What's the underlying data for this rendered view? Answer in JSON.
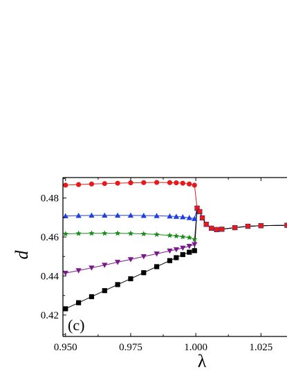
{
  "chart_data": {
    "type": "line",
    "xlabel": "λ",
    "ylabel": "d",
    "annotation": "(c)",
    "xlim": [
      0.949,
      1.035
    ],
    "ylim": [
      0.409,
      0.4905
    ],
    "xticks": [
      {
        "value": 0.95,
        "label": "0.950"
      },
      {
        "value": 0.975,
        "label": "0.975"
      },
      {
        "value": 1.0,
        "label": "1.000"
      },
      {
        "value": 1.025,
        "label": "1.025"
      }
    ],
    "yticks": [
      {
        "value": 0.42,
        "label": "0.42"
      },
      {
        "value": 0.44,
        "label": "0.44"
      },
      {
        "value": 0.46,
        "label": "0.46"
      },
      {
        "value": 0.48,
        "label": "0.48"
      }
    ],
    "grid": false,
    "series": [
      {
        "color": "#e41a1c",
        "marker": "circle",
        "points": [
          [
            0.95,
            0.4866
          ],
          [
            0.955,
            0.4869
          ],
          [
            0.96,
            0.4872
          ],
          [
            0.965,
            0.4874
          ],
          [
            0.97,
            0.4876
          ],
          [
            0.975,
            0.4878
          ],
          [
            0.98,
            0.4879
          ],
          [
            0.985,
            0.488
          ],
          [
            0.99,
            0.4879
          ],
          [
            0.9925,
            0.4878
          ],
          [
            0.995,
            0.4876
          ],
          [
            0.9975,
            0.4872
          ],
          [
            0.9995,
            0.4866
          ]
        ]
      },
      {
        "color": "#1f3fe0",
        "marker": "triangle-up",
        "points": [
          [
            0.95,
            0.4708
          ],
          [
            0.955,
            0.471
          ],
          [
            0.96,
            0.4711
          ],
          [
            0.965,
            0.4711
          ],
          [
            0.97,
            0.4711
          ],
          [
            0.975,
            0.4711
          ],
          [
            0.98,
            0.471
          ],
          [
            0.985,
            0.4709
          ],
          [
            0.99,
            0.4707
          ],
          [
            0.9925,
            0.4705
          ],
          [
            0.995,
            0.4703
          ],
          [
            0.9975,
            0.4699
          ],
          [
            0.9995,
            0.4694
          ]
        ]
      },
      {
        "color": "#1a8a1a",
        "marker": "star",
        "points": [
          [
            0.95,
            0.4616
          ],
          [
            0.955,
            0.4618
          ],
          [
            0.96,
            0.4619
          ],
          [
            0.965,
            0.4619
          ],
          [
            0.97,
            0.4619
          ],
          [
            0.975,
            0.4618
          ],
          [
            0.98,
            0.4616
          ],
          [
            0.985,
            0.4613
          ],
          [
            0.99,
            0.4608
          ],
          [
            0.9925,
            0.4605
          ],
          [
            0.995,
            0.4601
          ],
          [
            0.9975,
            0.4597
          ],
          [
            0.9995,
            0.4588
          ]
        ]
      },
      {
        "color": "#7a1a8a",
        "marker": "triangle-down",
        "points": [
          [
            0.95,
            0.4415
          ],
          [
            0.955,
            0.4428
          ],
          [
            0.96,
            0.4442
          ],
          [
            0.965,
            0.4456
          ],
          [
            0.97,
            0.4471
          ],
          [
            0.975,
            0.4485
          ],
          [
            0.98,
            0.45
          ],
          [
            0.985,
            0.4514
          ],
          [
            0.99,
            0.4529
          ],
          [
            0.9925,
            0.4536
          ],
          [
            0.995,
            0.4544
          ],
          [
            0.9975,
            0.4553
          ],
          [
            0.9995,
            0.4562
          ]
        ]
      },
      {
        "color": "#000000",
        "marker": "square",
        "points": [
          [
            0.95,
            0.4232
          ],
          [
            0.955,
            0.4263
          ],
          [
            0.96,
            0.4294
          ],
          [
            0.965,
            0.4325
          ],
          [
            0.97,
            0.4356
          ],
          [
            0.975,
            0.4386
          ],
          [
            0.98,
            0.4417
          ],
          [
            0.985,
            0.4448
          ],
          [
            0.99,
            0.4479
          ],
          [
            0.9925,
            0.4494
          ],
          [
            0.995,
            0.451
          ],
          [
            0.9975,
            0.4522
          ],
          [
            0.9995,
            0.453
          ]
        ]
      }
    ],
    "shared_branch": [
      [
        1.0005,
        0.4748
      ],
      [
        1.0015,
        0.473
      ],
      [
        1.0025,
        0.4698
      ],
      [
        1.004,
        0.4665
      ],
      [
        1.006,
        0.4645
      ],
      [
        1.008,
        0.4638
      ],
      [
        1.01,
        0.464
      ],
      [
        1.015,
        0.4648
      ],
      [
        1.02,
        0.4655
      ],
      [
        1.025,
        0.4658
      ],
      [
        1.035,
        0.466
      ]
    ]
  }
}
